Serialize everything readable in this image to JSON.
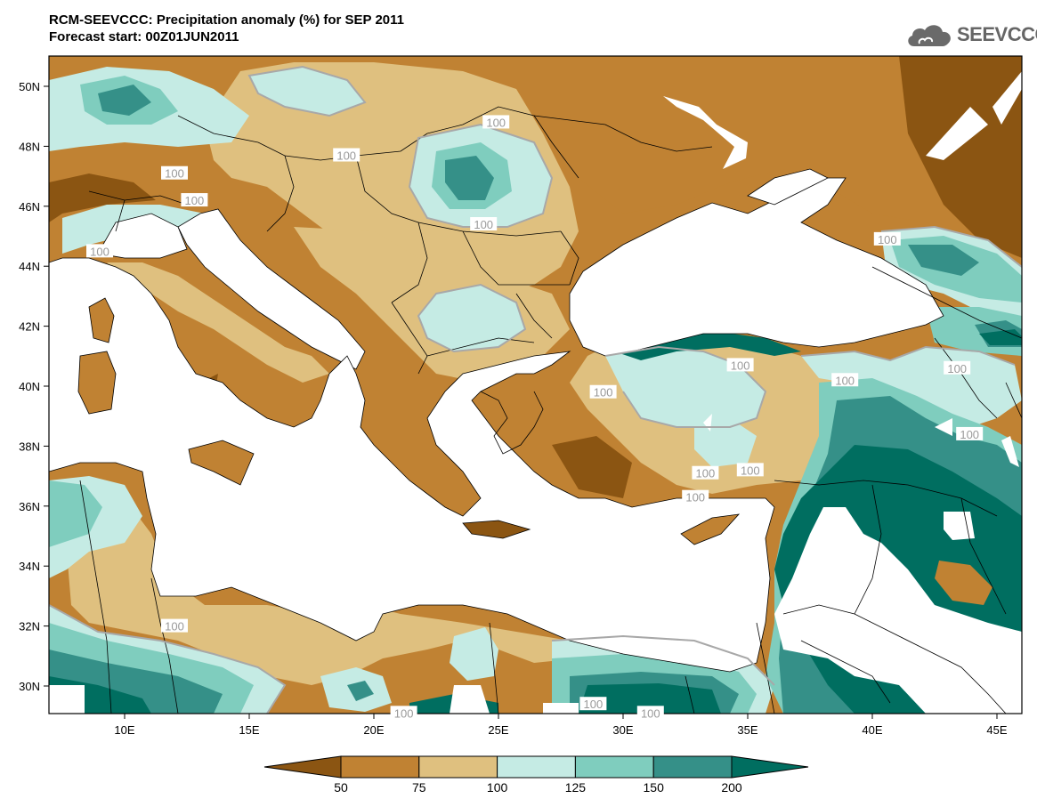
{
  "header": {
    "title_line1": "RCM-SEEVCCC: Precipitation anomaly (%) for SEP 2011",
    "title_line2": "Forecast start: 00Z01JUN2011"
  },
  "logo": {
    "text": "SEEVCCC",
    "icon": "cloud-icon"
  },
  "map": {
    "lon_ticks": [
      "10E",
      "15E",
      "20E",
      "25E",
      "30E",
      "35E",
      "40E",
      "45E"
    ],
    "lat_ticks": [
      "50N",
      "48N",
      "46N",
      "44N",
      "42N",
      "40N",
      "38N",
      "36N",
      "34N",
      "32N",
      "30N"
    ],
    "contour_label": "100",
    "contour_labels": [
      {
        "lon": 24.9,
        "lat": 48.8
      },
      {
        "lon": 18.9,
        "lat": 47.7
      },
      {
        "lon": 12.0,
        "lat": 47.1
      },
      {
        "lon": 12.8,
        "lat": 46.2
      },
      {
        "lon": 9.0,
        "lat": 44.5
      },
      {
        "lon": 24.4,
        "lat": 45.4
      },
      {
        "lon": 34.7,
        "lat": 40.7
      },
      {
        "lon": 29.2,
        "lat": 39.8
      },
      {
        "lon": 40.6,
        "lat": 44.9
      },
      {
        "lon": 38.9,
        "lat": 40.2
      },
      {
        "lon": 43.4,
        "lat": 40.6
      },
      {
        "lon": 43.9,
        "lat": 38.4
      },
      {
        "lon": 33.3,
        "lat": 37.1
      },
      {
        "lon": 35.1,
        "lat": 37.2
      },
      {
        "lon": 32.9,
        "lat": 36.3
      },
      {
        "lon": 12.0,
        "lat": 32.0
      },
      {
        "lon": 28.8,
        "lat": 29.4
      },
      {
        "lon": 21.2,
        "lat": 29.1
      },
      {
        "lon": 31.1,
        "lat": 29.1
      }
    ],
    "colors": {
      "very_dry": "#8b5512",
      "dry": "#c08233",
      "moderately_dry": "#dfc07f",
      "slightly_wet": "#c5ebe4",
      "wet": "#7fcdbe",
      "very_wet": "#359088",
      "extreme_wet": "#006e60",
      "sea": "#ffffff"
    }
  },
  "colorbar": {
    "labels": [
      "50",
      "75",
      "100",
      "125",
      "150",
      "200"
    ],
    "colors": [
      "#8b5512",
      "#c08233",
      "#dfc07f",
      "#c5ebe4",
      "#7fcdbe",
      "#359088",
      "#006e60"
    ]
  }
}
